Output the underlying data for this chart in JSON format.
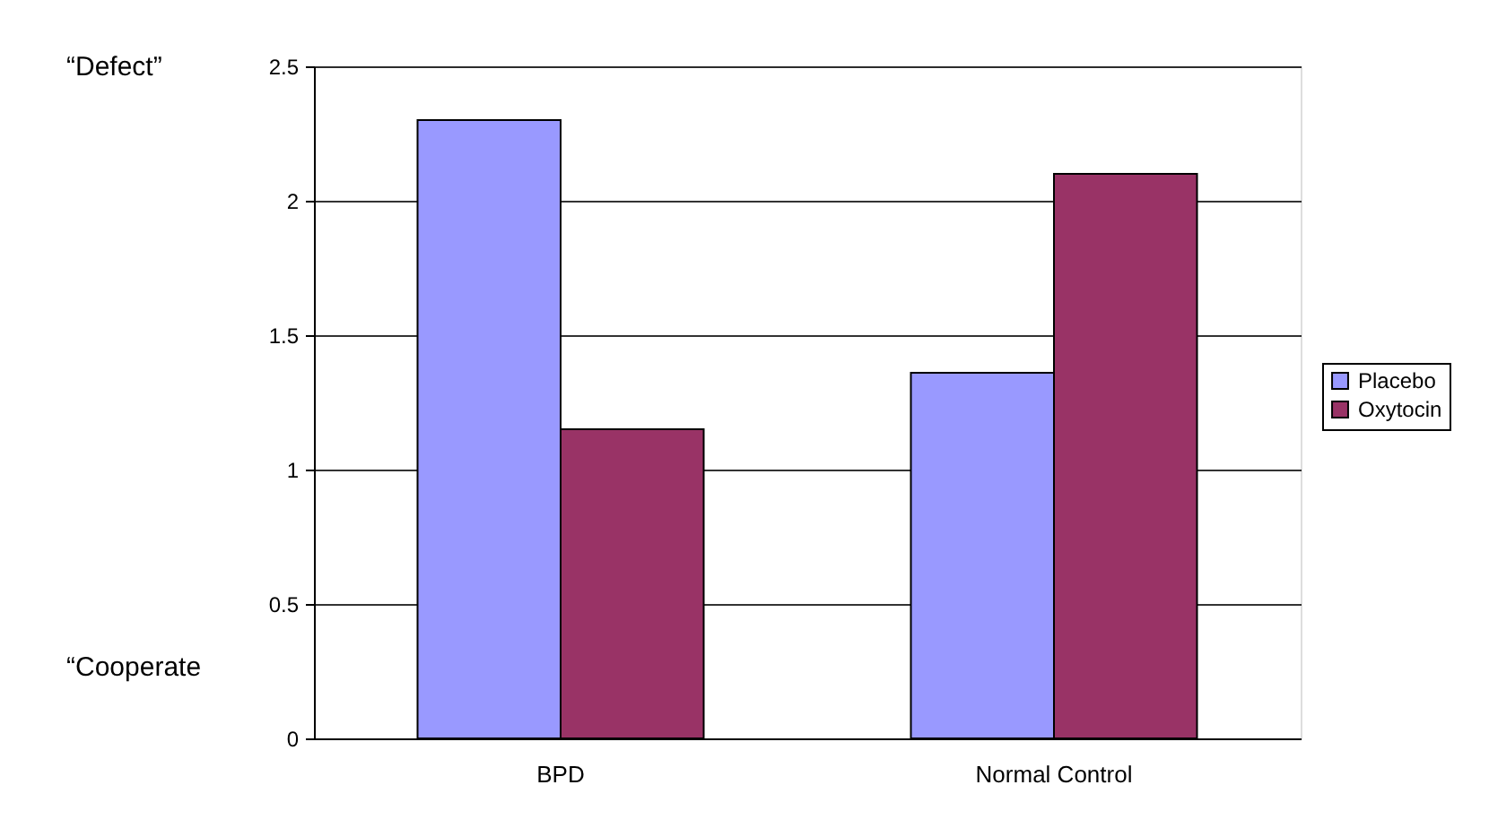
{
  "chart_data": {
    "type": "bar",
    "categories": [
      "BPD",
      "Normal Control"
    ],
    "series": [
      {
        "name": "Placebo",
        "color": "#9999ff",
        "values": [
          2.3,
          1.36
        ]
      },
      {
        "name": "Oxytocin",
        "color": "#993366",
        "values": [
          1.15,
          2.1
        ]
      }
    ],
    "ylim": [
      0,
      2.5
    ],
    "yticks": [
      0,
      0.5,
      1,
      1.5,
      2,
      2.5
    ],
    "grid": "y",
    "legend": "right",
    "annotations": [
      "“Defect”",
      "“Cooperate"
    ]
  }
}
